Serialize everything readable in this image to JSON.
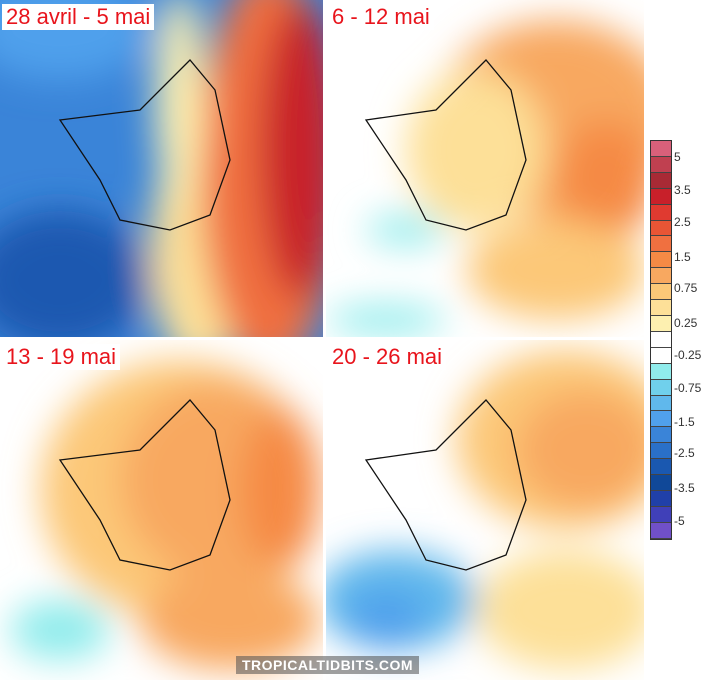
{
  "panels": [
    {
      "title": "28 avril - 5 mai"
    },
    {
      "title": "6 - 12 mai"
    },
    {
      "title": "13 - 19 mai"
    },
    {
      "title": "20 - 26 mai"
    }
  ],
  "legend": {
    "labels": [
      "5",
      "3.5",
      "2.5",
      "1.5",
      "0.75",
      "0.25",
      "-0.25",
      "-0.75",
      "-1.5",
      "-2.5",
      "-3.5",
      "-5"
    ],
    "colors": [
      "#d9607a",
      "#c04050",
      "#a82a35",
      "#c8202a",
      "#e03a30",
      "#e85535",
      "#f07040",
      "#f58a45",
      "#f8a860",
      "#fcc878",
      "#fde098",
      "#fdf0b0",
      "#ffffff",
      "#ffffff",
      "#90ecec",
      "#70d0ec",
      "#60b8ec",
      "#50a0ec",
      "#3a84d8",
      "#2a70c8",
      "#1a58b0",
      "#104898",
      "#2040a8",
      "#4040b8",
      "#7050c8"
    ]
  },
  "watermark": "TROPICALTIDBITS.COM"
}
